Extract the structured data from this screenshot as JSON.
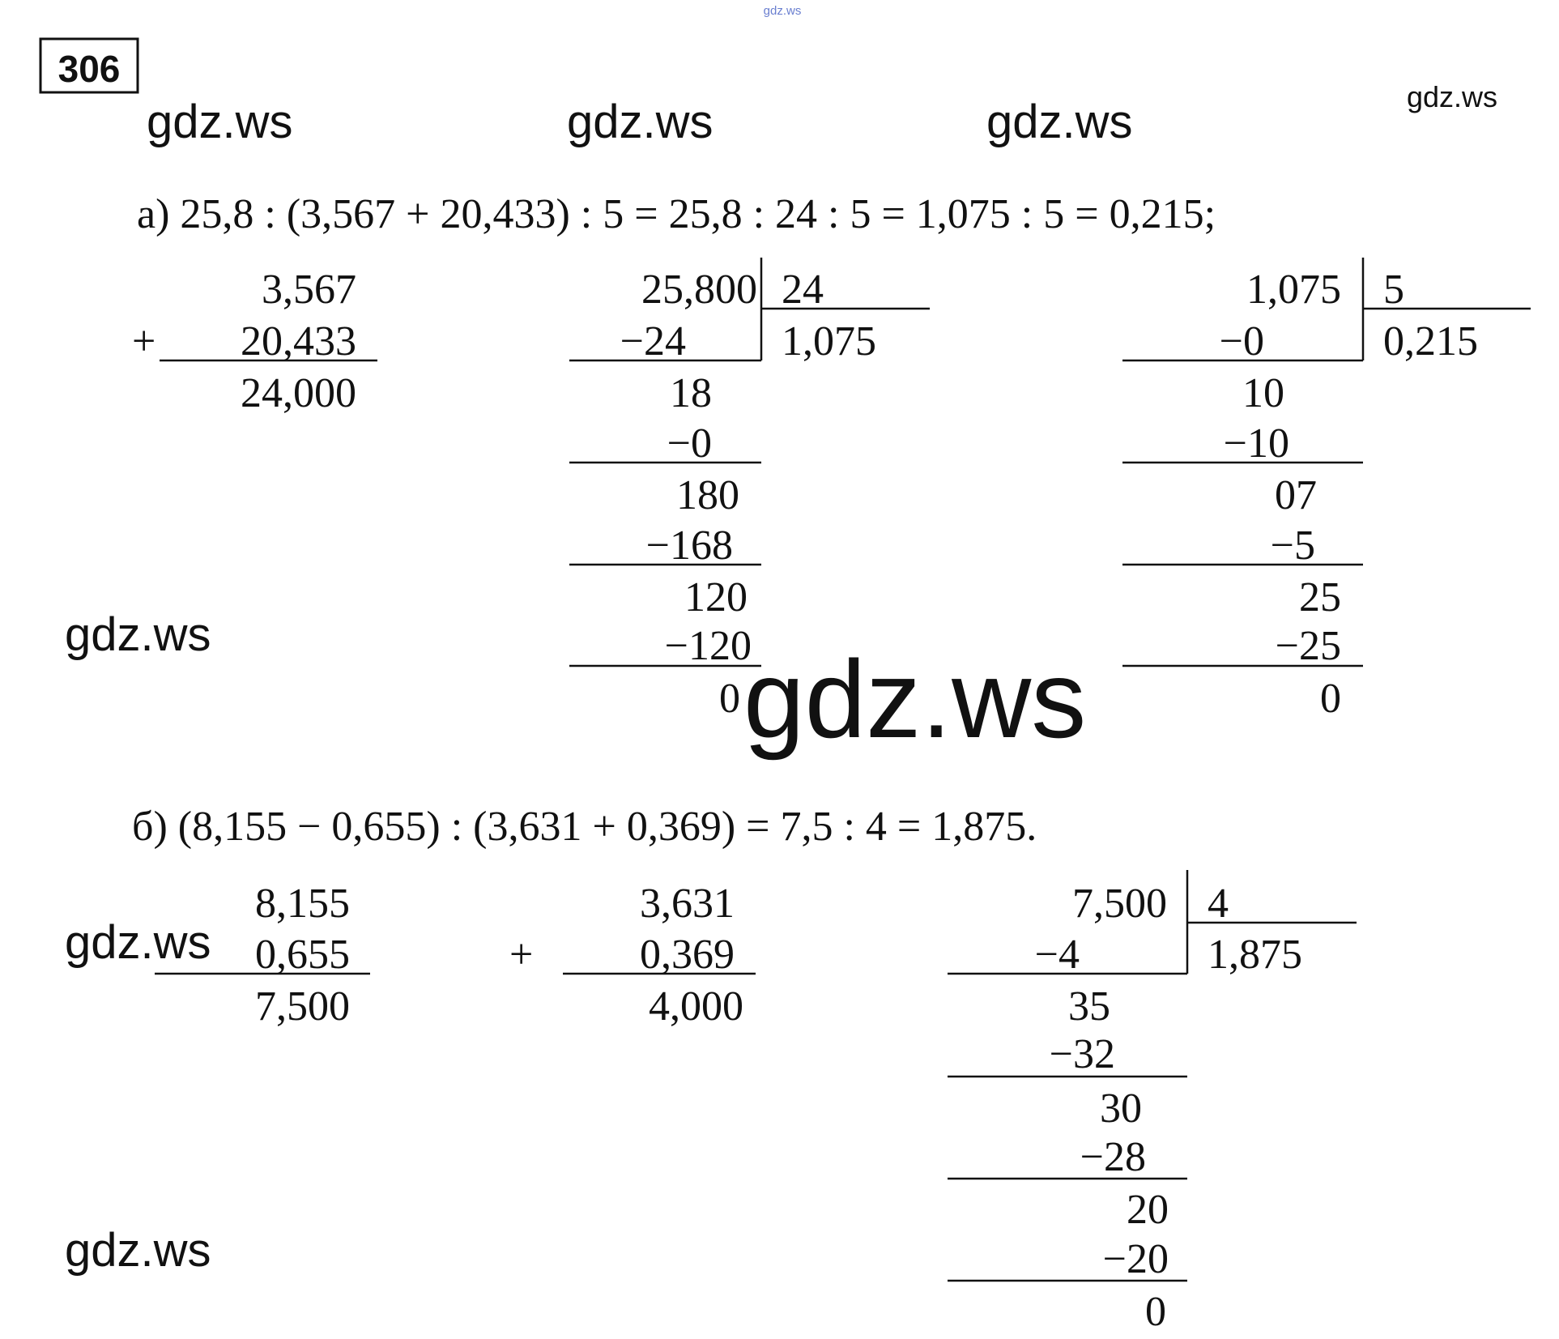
{
  "header": {
    "site_mark": "gdz.ws",
    "problem_number": "306"
  },
  "watermarks": [
    "gdz.ws",
    "gdz.ws",
    "gdz.ws",
    "gdz.ws",
    "gdz.ws",
    "gdz.ws",
    "gdz.ws",
    "gdz.ws"
  ],
  "part_a": {
    "expression": "а) 25,8 : (3,567 + 20,433) : 5 = 25,8 : 24 : 5 = 1,075 : 5 = 0,215;",
    "addition": {
      "operator": "+",
      "rows": [
        "3,567",
        "20,433",
        "24,000"
      ]
    },
    "division_1": {
      "dividend": "25,800",
      "divisor": "24",
      "quotient": "1,075",
      "steps": [
        "−24",
        "18",
        "−0",
        "180",
        "−168",
        "120",
        "−120",
        "0"
      ]
    },
    "division_2": {
      "dividend": "1,075",
      "divisor": "5",
      "quotient": "0,215",
      "steps": [
        "−0",
        "10",
        "−10",
        "07",
        "−5",
        "25",
        "−25",
        "0"
      ]
    }
  },
  "part_b": {
    "expression": "б) (8,155 − 0,655) : (3,631 + 0,369) = 7,5 : 4 = 1,875.",
    "subtraction": {
      "rows": [
        "8,155",
        "0,655",
        "7,500"
      ]
    },
    "addition": {
      "operator": "+",
      "rows": [
        "3,631",
        "0,369",
        "4,000"
      ]
    },
    "division": {
      "dividend": "7,500",
      "divisor": "4",
      "quotient": "1,875",
      "steps": [
        "−4",
        "35",
        "−32",
        "30",
        "−28",
        "20",
        "−20",
        "0"
      ]
    }
  }
}
